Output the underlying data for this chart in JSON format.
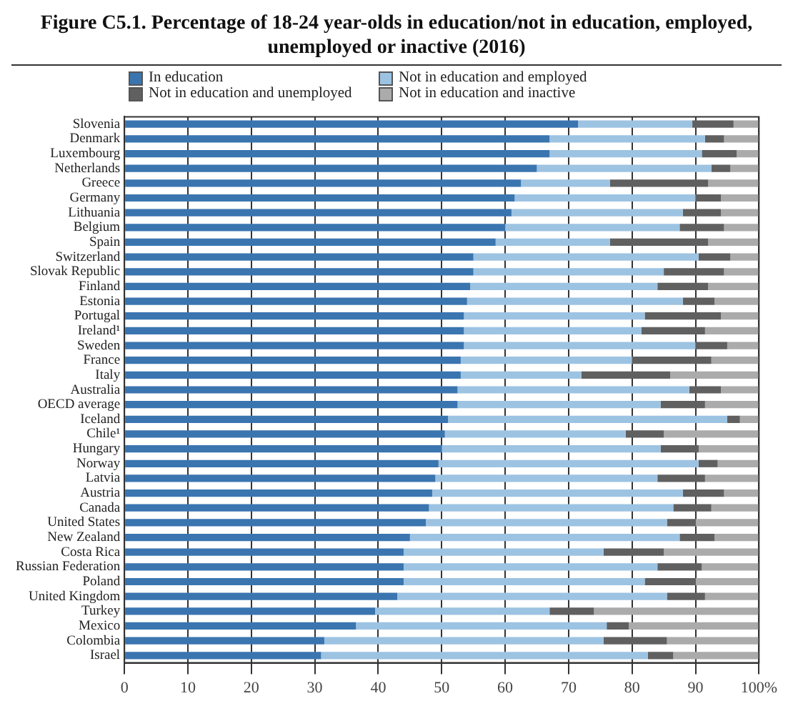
{
  "chart_data": {
    "type": "bar",
    "orientation": "horizontal",
    "stacked": true,
    "title": "Figure C5.1. Percentage of 18-24 year-olds in education/not in education, employed, unemployed or inactive (2016)",
    "categories": [
      "Slovenia",
      "Denmark",
      "Luxembourg",
      "Netherlands",
      "Greece",
      "Germany",
      "Lithuania",
      "Belgium",
      "Spain",
      "Switzerland",
      "Slovak Republic",
      "Finland",
      "Estonia",
      "Portugal",
      "Ireland¹",
      "Sweden",
      "France",
      "Italy",
      "Australia",
      "OECD average",
      "Iceland",
      "Chile¹",
      "Hungary",
      "Norway",
      "Latvia",
      "Austria",
      "Canada",
      "United States",
      "New Zealand",
      "Costa Rica",
      "Russian Federation",
      "Poland",
      "United Kingdom",
      "Turkey",
      "Mexico",
      "Colombia",
      "Israel"
    ],
    "series": [
      {
        "name": "In education",
        "color": "#3a75b0",
        "values": [
          71.5,
          67,
          67,
          65,
          62.5,
          61.5,
          61,
          60,
          58.5,
          55,
          55,
          54.5,
          54,
          53.5,
          53.5,
          53.5,
          53,
          53,
          52.5,
          52.5,
          51,
          50.5,
          50,
          49.5,
          49,
          48.5,
          48,
          47.5,
          45,
          44,
          44,
          44,
          43,
          39.5,
          36.5,
          31.5,
          31
        ]
      },
      {
        "name": "Not in education and employed",
        "color": "#9dc3e2",
        "values": [
          18,
          24.5,
          24,
          27.5,
          14,
          28.5,
          27,
          27.5,
          18,
          35.5,
          30,
          29.5,
          34,
          28.5,
          28,
          36.5,
          27,
          19,
          36.5,
          32,
          44,
          28.5,
          34.5,
          41,
          35,
          39.5,
          38.5,
          38,
          42.5,
          31.5,
          40,
          38,
          42.5,
          27.5,
          39.5,
          44,
          51.5
        ]
      },
      {
        "name": "Not in education and unemployed",
        "color": "#606060",
        "values": [
          6.5,
          3,
          5.5,
          3,
          15.5,
          4,
          6,
          7,
          15.5,
          5,
          9.5,
          8,
          5,
          12,
          10,
          5,
          12.5,
          14,
          5,
          7,
          2,
          6,
          6,
          3,
          7.5,
          6.5,
          6,
          4.5,
          5.5,
          9.5,
          7,
          8,
          6,
          7,
          3.5,
          10,
          4
        ]
      },
      {
        "name": "Not in education and inactive",
        "color": "#ababab",
        "values": [
          4,
          5.5,
          3.5,
          4.5,
          8,
          6,
          6,
          5.5,
          8,
          4.5,
          5.5,
          8,
          7,
          6,
          8.5,
          5,
          7.5,
          14,
          6,
          8.5,
          3,
          15,
          9.5,
          6.5,
          8.5,
          5.5,
          7.5,
          10,
          7,
          15,
          9,
          10,
          8.5,
          26,
          20.5,
          14.5,
          13.5
        ]
      }
    ],
    "xlim": [
      0,
      100
    ],
    "xticks": [
      0,
      10,
      20,
      30,
      40,
      50,
      60,
      70,
      80,
      90,
      {
        "value": 100,
        "label": "100%"
      }
    ],
    "grid": "x",
    "legend": "top"
  }
}
